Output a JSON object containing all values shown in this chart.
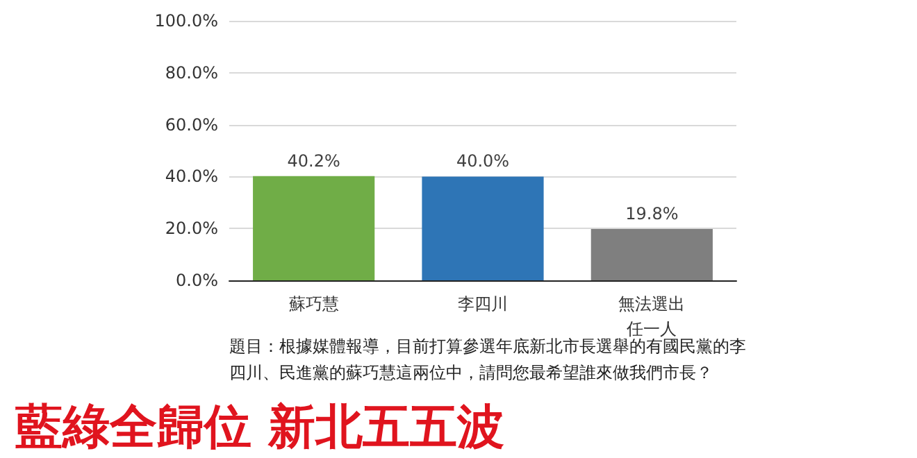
{
  "chart_data": {
    "type": "bar",
    "title": "藍綠全歸位 新北五五波",
    "categories": [
      "蘇巧慧",
      "李四川",
      "無法選出任一人"
    ],
    "values": [
      40.2,
      40.0,
      19.8
    ],
    "colors": [
      "#70ad47",
      "#2e75b6",
      "#7f7f7f"
    ],
    "value_labels": [
      "40.2%",
      "40.0%",
      "19.8%"
    ],
    "ylim": [
      0,
      100
    ],
    "yticks": [
      {
        "value": 0,
        "label": "0.0%"
      },
      {
        "value": 20,
        "label": "20.0%"
      },
      {
        "value": 40,
        "label": "40.0%"
      },
      {
        "value": 60,
        "label": "60.0%"
      },
      {
        "value": 80,
        "label": "80.0%"
      },
      {
        "value": 100,
        "label": "100.0%"
      }
    ],
    "grid": "y",
    "annotations": [
      "題目：根據媒體報導，目前打算參選年底新北市長選舉的有國民黨的李四川、民進黨的蘇巧慧這兩位中，請問您最希望誰來做我們市長？"
    ]
  }
}
